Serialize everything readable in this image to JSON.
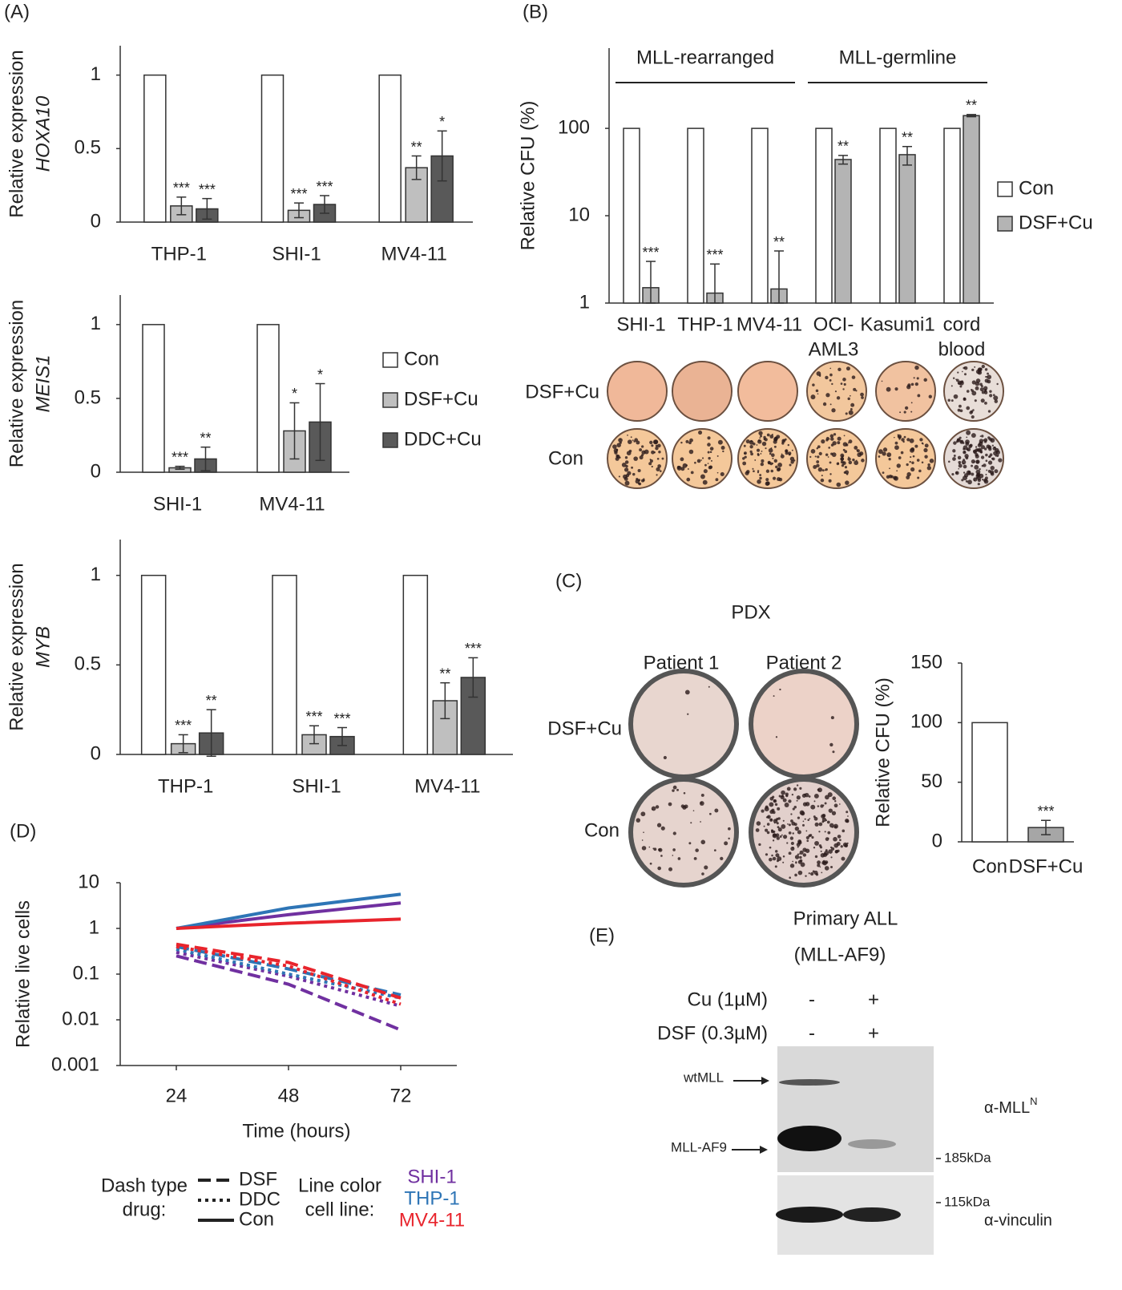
{
  "figure": {
    "panel_labels": [
      "(A)",
      "(B)",
      "(C)",
      "(D)",
      "(E)"
    ],
    "colony_rows": [
      "DSF+Cu",
      "Con"
    ],
    "pdx": {
      "title": "PDX",
      "columns": [
        "Patient 1",
        "Patient 2"
      ],
      "rows": [
        "DSF+Cu",
        "Con"
      ]
    },
    "blot": {
      "title": [
        "Primary ALL",
        "(MLL-AF9)"
      ],
      "treatments": [
        {
          "label": "Cu (1µM)",
          "lanes": [
            "-",
            "+"
          ]
        },
        {
          "label": "DSF (0.3µM)",
          "lanes": [
            "-",
            "+"
          ]
        }
      ],
      "bands": [
        "wtMLL",
        "MLL-AF9"
      ],
      "markers": [
        "185kDa",
        "115kDa"
      ],
      "antibodies": [
        {
          "label": "α-MLL",
          "sup": "N"
        },
        {
          "label": "α-vinculin"
        }
      ]
    }
  },
  "chart_data": [
    {
      "type": "bar",
      "ylabel": "Relative expression",
      "gene": "HOXA10",
      "categories": [
        [
          "THP-1"
        ],
        [
          "SHI-1"
        ],
        [
          "MV4-11"
        ]
      ],
      "series": [
        {
          "color": "#ffffff",
          "values": [
            1,
            1,
            1
          ]
        },
        {
          "color": "#bfbfbf",
          "values": [
            0.11,
            0.08,
            0.37
          ],
          "errors": [
            0.06,
            0.05,
            0.08
          ],
          "significance": [
            "***",
            "***",
            "**"
          ]
        },
        {
          "color": "#595959",
          "values": [
            0.09,
            0.12,
            0.45
          ],
          "errors": [
            0.07,
            0.06,
            0.17
          ],
          "significance": [
            "***",
            "***",
            "*"
          ]
        }
      ],
      "ylim": [
        0,
        1.2
      ],
      "yticks": [
        0,
        0.5,
        1
      ]
    },
    {
      "type": "bar",
      "ylabel": "Relative expression",
      "gene": "MEIS1",
      "legend": true,
      "categories": [
        [
          "SHI-1"
        ],
        [
          "MV4-11"
        ]
      ],
      "series": [
        {
          "name": "Con",
          "color": "#ffffff",
          "values": [
            1,
            1
          ]
        },
        {
          "name": "DSF+Cu",
          "color": "#bfbfbf",
          "values": [
            0.03,
            0.28
          ],
          "errors": [
            0.01,
            0.19
          ],
          "significance": [
            "***",
            "*"
          ]
        },
        {
          "name": "DDC+Cu",
          "color": "#595959",
          "values": [
            0.09,
            0.34
          ],
          "errors": [
            0.08,
            0.26
          ],
          "significance": [
            "**",
            "*"
          ]
        }
      ],
      "ylim": [
        0,
        1.2
      ],
      "yticks": [
        0,
        0.5,
        1
      ]
    },
    {
      "type": "bar",
      "ylabel": "Relative expression",
      "gene": "MYB",
      "categories": [
        [
          "THP-1"
        ],
        [
          "SHI-1"
        ],
        [
          "MV4-11"
        ]
      ],
      "series": [
        {
          "color": "#ffffff",
          "values": [
            1,
            1,
            1
          ]
        },
        {
          "color": "#bfbfbf",
          "values": [
            0.06,
            0.11,
            0.3
          ],
          "errors": [
            0.05,
            0.05,
            0.1
          ],
          "significance": [
            "***",
            "***",
            "**"
          ]
        },
        {
          "color": "#595959",
          "values": [
            0.12,
            0.1,
            0.43
          ],
          "errors": [
            0.13,
            0.05,
            0.11
          ],
          "significance": [
            "**",
            "***",
            "***"
          ]
        }
      ],
      "ylim": [
        0,
        1.2
      ],
      "yticks": [
        0,
        0.5,
        1
      ]
    },
    {
      "type": "bar",
      "ylabel": "Relative CFU (%)",
      "log": true,
      "legend": true,
      "groups": [
        {
          "label": "MLL-rearranged",
          "from": 0,
          "to": 2
        },
        {
          "label": "MLL-germline",
          "from": 3,
          "to": 5
        }
      ],
      "categories": [
        [
          "SHI-1"
        ],
        [
          "THP-1"
        ],
        [
          "MV4-11"
        ],
        [
          "OCI-",
          "AML3"
        ],
        [
          "Kasumi1"
        ],
        [
          "cord",
          "blood"
        ]
      ],
      "series": [
        {
          "name": "Con",
          "color": "#ffffff",
          "values": [
            100,
            100,
            100,
            100,
            100,
            100
          ]
        },
        {
          "name": "DSF+Cu",
          "color": "#b4b4b4",
          "values": [
            1.5,
            1.3,
            1.45,
            44,
            50,
            140
          ],
          "errors": [
            1.5,
            1.5,
            2.5,
            5,
            12,
            4
          ],
          "significance": [
            "***",
            "***",
            "**",
            "**",
            "**",
            "**"
          ]
        }
      ],
      "ylim": [
        1,
        830
      ],
      "yticks": [
        1,
        10,
        100
      ]
    },
    {
      "type": "bar",
      "ylabel": "Relative CFU (%)",
      "categories": [
        [
          "Con"
        ],
        [
          "DSF+Cu"
        ]
      ],
      "series": [
        {
          "colors": [
            "#ffffff",
            "#a6a6a6"
          ],
          "values": [
            100,
            12
          ],
          "errors": [
            null,
            6
          ],
          "significance": [
            null,
            "***"
          ]
        }
      ],
      "ylim": [
        0,
        150
      ],
      "yticks": [
        0,
        50,
        100,
        150
      ]
    },
    {
      "type": "line",
      "log": true,
      "ylabel": "Relative live cells",
      "xlabel": "Time (hours)",
      "x": [
        24,
        48,
        72
      ],
      "xlim": [
        12,
        84
      ],
      "xticks": [
        24,
        48,
        72
      ],
      "ylim": [
        0.001,
        10
      ],
      "yticks": [
        0.001,
        0.01,
        0.1,
        1,
        10
      ],
      "series": [
        {
          "color": "#7030a0",
          "dash": "dashed",
          "values": [
            0.25,
            0.06,
            0.006
          ]
        },
        {
          "color": "#7030a0",
          "dash": "dotted",
          "values": [
            0.3,
            0.09,
            0.02
          ]
        },
        {
          "color": "#7030a0",
          "dash": "solid",
          "values": [
            1,
            2,
            3.6
          ]
        },
        {
          "color": "#2e75b6",
          "dash": "dashed",
          "values": [
            0.4,
            0.13,
            0.035
          ]
        },
        {
          "color": "#2e75b6",
          "dash": "dotted",
          "values": [
            0.35,
            0.1,
            0.03
          ]
        },
        {
          "color": "#2e75b6",
          "dash": "solid",
          "values": [
            1,
            2.8,
            5.6
          ]
        },
        {
          "color": "#e8242c",
          "dash": "dashed",
          "values": [
            0.45,
            0.18,
            0.03
          ]
        },
        {
          "color": "#e8242c",
          "dash": "dotted",
          "values": [
            0.4,
            0.15,
            0.022
          ]
        },
        {
          "color": "#e8242c",
          "dash": "solid",
          "values": [
            1,
            1.3,
            1.6
          ]
        }
      ],
      "dash_legend": {
        "title": [
          "Dash type",
          "drug:"
        ],
        "entries": [
          {
            "label": "DSF",
            "dash": "dashed"
          },
          {
            "label": "DDC",
            "dash": "dotted"
          },
          {
            "label": "Con",
            "dash": "solid"
          }
        ]
      },
      "color_legend": {
        "title": [
          "Line color",
          "cell line:"
        ],
        "entries": [
          {
            "label": "SHI-1",
            "color": "#7030a0"
          },
          {
            "label": "THP-1",
            "color": "#2e75b6"
          },
          {
            "label": "MV4-11",
            "color": "#e8242c"
          }
        ]
      }
    }
  ]
}
